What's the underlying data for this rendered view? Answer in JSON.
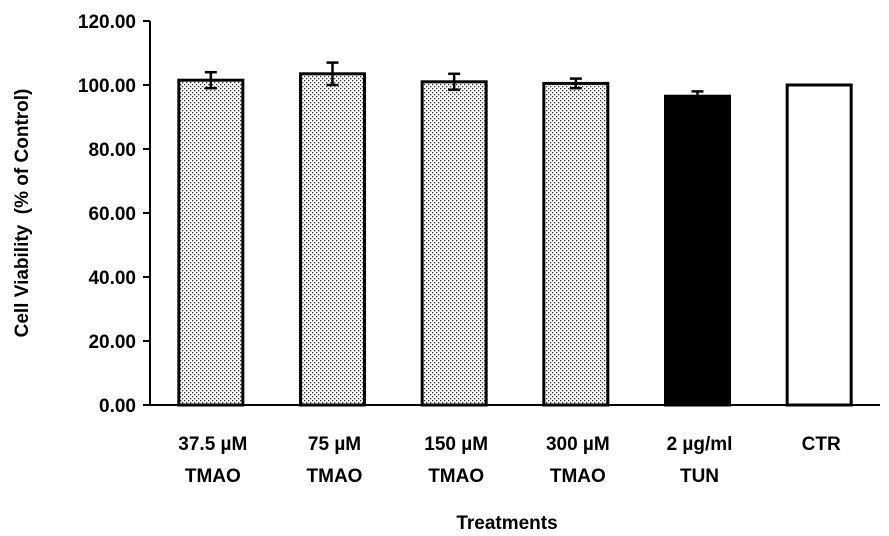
{
  "chart_data": {
    "type": "bar",
    "title": "",
    "xlabel": "Treatments",
    "ylabel": "Cell Viability  (% of Control)",
    "ylim": [
      0,
      120
    ],
    "yticks": [
      "0.00",
      "20.00",
      "40.00",
      "60.00",
      "80.00",
      "100.00",
      "120.00"
    ],
    "ytick_values": [
      0,
      20,
      40,
      60,
      80,
      100,
      120
    ],
    "grid": false,
    "legend": "none",
    "categories": [
      [
        "37.5 µM",
        "TMAO"
      ],
      [
        "75 µM",
        "TMAO"
      ],
      [
        "150 µM",
        "TMAO"
      ],
      [
        "300 µM",
        "TMAO"
      ],
      [
        "2 µg/ml",
        "TUN"
      ],
      [
        "CTR"
      ]
    ],
    "values": [
      101.5,
      103.5,
      101.0,
      100.5,
      96.5,
      100.0
    ],
    "errors": [
      2.5,
      3.5,
      2.5,
      1.5,
      1.5,
      null
    ],
    "bar_fills": [
      "dotted",
      "dotted",
      "dotted",
      "dotted",
      "#000000",
      "#ffffff"
    ]
  }
}
